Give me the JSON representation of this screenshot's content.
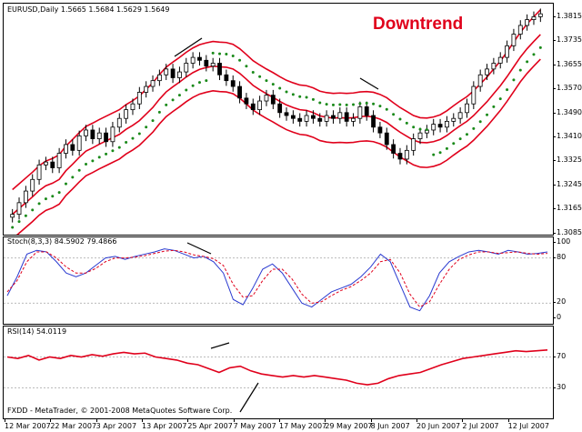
{
  "chart_header": {
    "symbol_line": "EURUSD,Daily  1.5665 1.5684 1.5629 1.5649",
    "headline": "Downtrend"
  },
  "stoch_panel": {
    "label": "Stoch(8,3,3) 84.5902 79.4866"
  },
  "rsi_panel": {
    "label": "RSI(14) 54.0119"
  },
  "footer": {
    "copyright": "FXDD - MetaTrader, © 2001-2008 MetaQuotes Software Corp."
  },
  "colors": {
    "candle": "#000000",
    "bands": "#e0001b",
    "parabolic_sar": "#1a8a1a",
    "stoch_main": "#2a3ad0",
    "stoch_signal": "#e0001b",
    "rsi": "#e0001b"
  },
  "chart_data": [
    {
      "type": "candlestick",
      "title": "EURUSD,Daily",
      "price_axis_ticks": [
        "1.3815",
        "1.3735",
        "1.3655",
        "1.3570",
        "1.3490",
        "1.3410",
        "1.3325",
        "1.3245",
        "1.3165",
        "1.3085"
      ],
      "date_ticks": [
        "12 Mar 2007",
        "22 Mar 2007",
        "3 Apr 2007",
        "13 Apr 2007",
        "25 Apr 2007",
        "7 May 2007",
        "17 May 2007",
        "29 May 2007",
        "8 Jun 2007",
        "20 Jun 2007",
        "2 Jul 2007",
        "12 Jul 2007"
      ],
      "close_prices": [
        1.312,
        1.316,
        1.32,
        1.324,
        1.329,
        1.33,
        1.328,
        1.333,
        1.336,
        1.334,
        1.339,
        1.341,
        1.338,
        1.34,
        1.337,
        1.342,
        1.345,
        1.348,
        1.35,
        1.354,
        1.356,
        1.358,
        1.36,
        1.362,
        1.359,
        1.361,
        1.364,
        1.366,
        1.365,
        1.363,
        1.364,
        1.36,
        1.358,
        1.356,
        1.352,
        1.35,
        1.348,
        1.351,
        1.353,
        1.35,
        1.347,
        1.346,
        1.345,
        1.344,
        1.346,
        1.345,
        1.344,
        1.346,
        1.345,
        1.347,
        1.344,
        1.345,
        1.349,
        1.346,
        1.342,
        1.34,
        1.336,
        1.333,
        1.331,
        1.334,
        1.338,
        1.34,
        1.341,
        1.343,
        1.342,
        1.344,
        1.345,
        1.347,
        1.35,
        1.356,
        1.36,
        1.362,
        1.364,
        1.366,
        1.37,
        1.374,
        1.377,
        1.379,
        1.38,
        1.381
      ],
      "ylim": [
        1.305,
        1.3845
      ]
    },
    {
      "type": "line",
      "title": "Stoch(8,3,3) 84.5902 79.4866",
      "y_ticks": [
        "100",
        "80",
        "20",
        "0"
      ],
      "ylim": [
        0,
        100
      ],
      "series": [
        {
          "values": [
            30,
            55,
            85,
            90,
            88,
            75,
            60,
            55,
            60,
            70,
            80,
            82,
            78,
            82,
            85,
            88,
            92,
            90,
            85,
            80,
            82,
            75,
            60,
            25,
            18,
            40,
            65,
            72,
            60,
            40,
            20,
            15,
            25,
            35,
            40,
            45,
            55,
            68,
            85,
            75,
            45,
            15,
            10,
            30,
            60,
            75,
            82,
            88,
            90,
            88,
            85,
            90,
            88,
            85,
            86,
            88
          ]
        },
        {
          "values": [
            35,
            50,
            75,
            88,
            88,
            80,
            68,
            60,
            60,
            66,
            75,
            80,
            80,
            81,
            83,
            86,
            89,
            90,
            88,
            84,
            82,
            79,
            70,
            45,
            28,
            30,
            50,
            65,
            65,
            52,
            32,
            20,
            22,
            30,
            37,
            42,
            50,
            60,
            75,
            78,
            60,
            32,
            15,
            22,
            45,
            65,
            78,
            84,
            88,
            88,
            86,
            87,
            88,
            86,
            85,
            86
          ]
        }
      ]
    },
    {
      "type": "line",
      "title": "RSI(14) 54.0119",
      "y_ticks": [
        "70",
        "30"
      ],
      "ylim": [
        0,
        100
      ],
      "series": [
        {
          "values": [
            70,
            68,
            72,
            66,
            70,
            68,
            72,
            70,
            73,
            71,
            74,
            76,
            74,
            75,
            70,
            68,
            66,
            62,
            60,
            55,
            50,
            56,
            58,
            52,
            48,
            46,
            44,
            46,
            44,
            46,
            44,
            42,
            40,
            36,
            34,
            36,
            42,
            46,
            48,
            50,
            55,
            60,
            64,
            68,
            70,
            72,
            74,
            76,
            78,
            77,
            78,
            79
          ]
        }
      ]
    }
  ]
}
